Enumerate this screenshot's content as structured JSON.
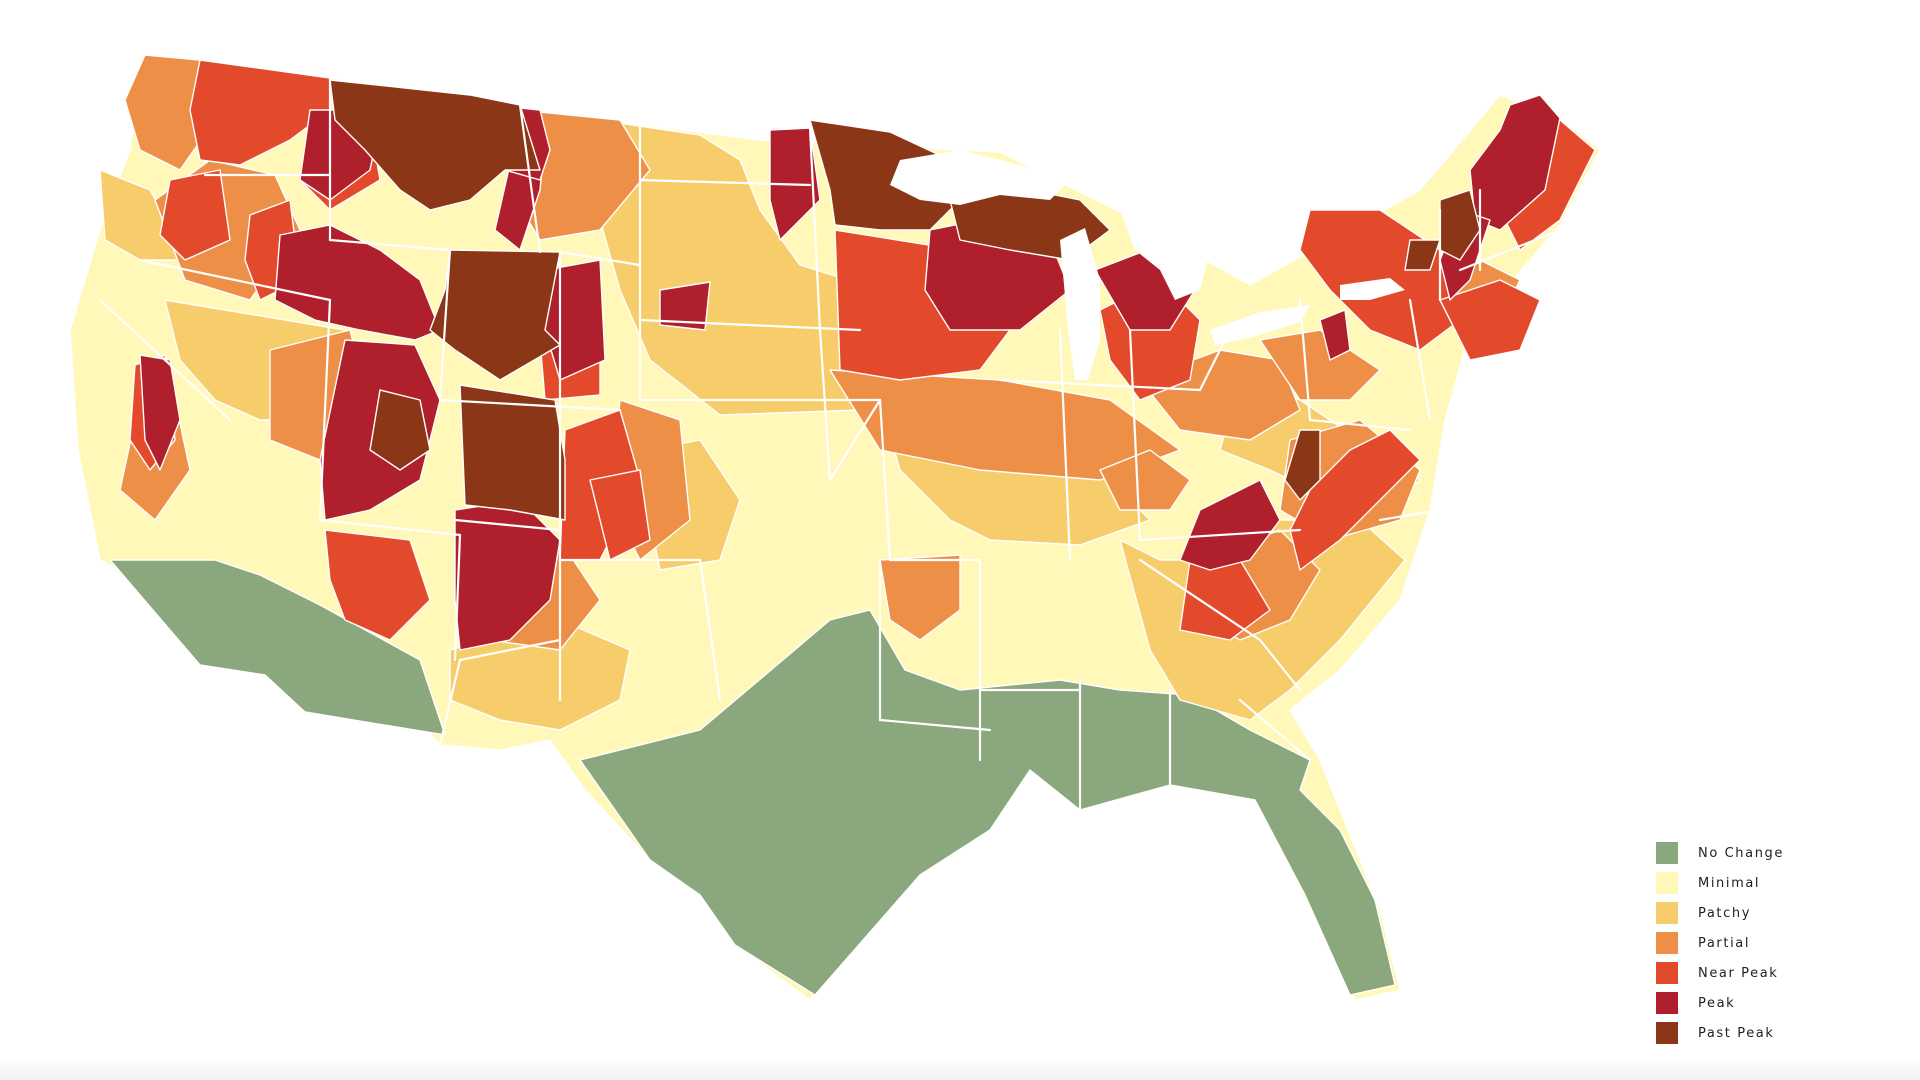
{
  "legend": {
    "items": [
      {
        "key": "no_change",
        "label": "No Change",
        "color": "#8ba77e"
      },
      {
        "key": "minimal",
        "label": "Minimal",
        "color": "#fff8b8"
      },
      {
        "key": "patchy",
        "label": "Patchy",
        "color": "#f6cd6a"
      },
      {
        "key": "partial",
        "label": "Partial",
        "color": "#ee8f48"
      },
      {
        "key": "near_peak",
        "label": "Near Peak",
        "color": "#e24a2b"
      },
      {
        "key": "peak",
        "label": "Peak",
        "color": "#b0202c"
      },
      {
        "key": "past_peak",
        "label": "Past Peak",
        "color": "#8b3717"
      }
    ]
  }
}
